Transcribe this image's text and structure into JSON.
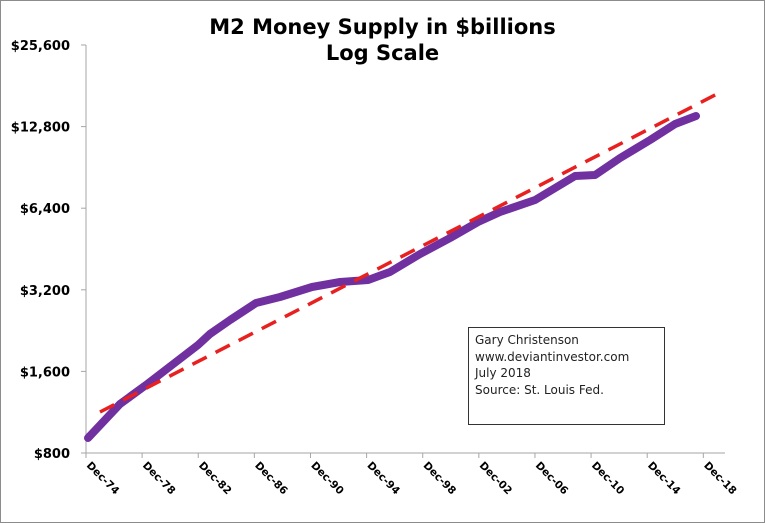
{
  "chart_data": {
    "type": "line",
    "title": "M2 Money Supply in $billions",
    "subtitle": "Log Scale",
    "xlabel": "",
    "ylabel": "",
    "yscale": "log2",
    "ylim": [
      800,
      25600
    ],
    "xlim": [
      1974.92,
      2021.5
    ],
    "grid": false,
    "y_ticks": [
      {
        "value": 800,
        "label": "$800"
      },
      {
        "value": 1600,
        "label": "$1,600"
      },
      {
        "value": 3200,
        "label": "$3,200"
      },
      {
        "value": 6400,
        "label": "$6,400"
      },
      {
        "value": 12800,
        "label": "$12,800"
      },
      {
        "value": 25600,
        "label": "$25,600"
      }
    ],
    "x_ticks": [
      {
        "value": 1974.92,
        "label": "Dec-74"
      },
      {
        "value": 1978.92,
        "label": "Dec-78"
      },
      {
        "value": 1982.92,
        "label": "Dec-82"
      },
      {
        "value": 1986.92,
        "label": "Dec-86"
      },
      {
        "value": 1990.92,
        "label": "Dec-90"
      },
      {
        "value": 1994.92,
        "label": "Dec-94"
      },
      {
        "value": 1998.92,
        "label": "Dec-98"
      },
      {
        "value": 2002.92,
        "label": "Dec-02"
      },
      {
        "value": 2006.92,
        "label": "Dec-06"
      },
      {
        "value": 2010.92,
        "label": "Dec-10"
      },
      {
        "value": 2014.92,
        "label": "Dec-14"
      },
      {
        "value": 2018.92,
        "label": "Dec-18"
      }
    ],
    "series": [
      {
        "name": "M2 Money Supply",
        "color": "#7030a0",
        "style": "solid",
        "x": [
          1975.06,
          1977.34,
          1979.2,
          1981.05,
          1982.9,
          1983.76,
          1985.19,
          1987.04,
          1988.75,
          1991.03,
          1993.03,
          1995.03,
          1996.59,
          1998.73,
          2000.87,
          2002.86,
          2004.43,
          2006.93,
          2008.71,
          2009.78,
          2011.21,
          2012.99,
          2015.13,
          2016.91,
          2018.4
        ],
        "values": [
          909,
          1213,
          1426,
          1690,
          2002,
          2200,
          2476,
          2861,
          3010,
          3277,
          3419,
          3478,
          3722,
          4336,
          4970,
          5691,
          6195,
          6864,
          7795,
          8416,
          8485,
          9802,
          11424,
          13090,
          14006
        ]
      },
      {
        "name": "Trend",
        "color": "#e8201f",
        "style": "dashed",
        "x": [
          1975.92,
          2020.17
        ],
        "values": [
          1133,
          17175
        ]
      }
    ],
    "annotation": {
      "lines": [
        "Gary Christenson",
        "www.deviantinvestor.com",
        "July 2018",
        "Source: St. Louis Fed."
      ],
      "placement": "bottom-right"
    }
  }
}
